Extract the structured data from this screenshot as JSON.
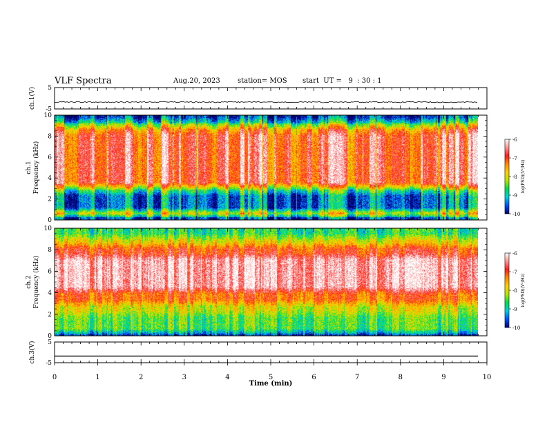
{
  "header": {
    "title": "VLF Spectra",
    "date": "Aug.20, 2023",
    "station": "station= MOS",
    "start": "start  UT =   9  : 30 : 1"
  },
  "chart_data": [
    {
      "type": "line",
      "panel": "ch1-voltage",
      "ylabel": "ch.1(V)",
      "ylim": [
        -5,
        5
      ],
      "yticks": [
        "5",
        "-5"
      ],
      "series": [
        {
          "values": [
            -1.8
          ]
        }
      ]
    },
    {
      "type": "heatmap",
      "panel": "ch1-spectrogram",
      "ylabel": "ch.1\nFrequency (kHz)",
      "ylim": [
        0,
        10
      ],
      "yticks": [
        "0",
        "2",
        "4",
        "6",
        "8",
        "10"
      ],
      "colorbar": {
        "label": "log(PSD)(V²/Hz)",
        "range": [
          -10,
          -6
        ],
        "ticks": [
          "-6",
          "-7",
          "-8",
          "-9",
          "-10"
        ]
      },
      "bands": [
        {
          "from": 0,
          "to": 0.4,
          "level": -9.5
        },
        {
          "from": 0.4,
          "to": 0.8,
          "level": -7.5
        },
        {
          "from": 0.8,
          "to": 2.6,
          "level": -9.4
        },
        {
          "from": 2.6,
          "to": 3.2,
          "level": -8.4
        },
        {
          "from": 3.2,
          "to": 8.4,
          "level": -6.8
        },
        {
          "from": 8.4,
          "to": 9.0,
          "level": -7.4
        },
        {
          "from": 9.0,
          "to": 9.5,
          "level": -8.6
        },
        {
          "from": 9.5,
          "to": 10,
          "level": -9.6
        }
      ]
    },
    {
      "type": "heatmap",
      "panel": "ch2-spectrogram",
      "ylabel": "ch.2\nFrequency (kHz)",
      "ylim": [
        0,
        10
      ],
      "yticks": [
        "0",
        "2",
        "4",
        "6",
        "8",
        "10"
      ],
      "colorbar": {
        "label": "log(PSD)(V²/Hz)",
        "range": [
          -10,
          -6
        ],
        "ticks": [
          "-6",
          "-7",
          "-8",
          "-9",
          "-10"
        ]
      },
      "bands": [
        {
          "from": 0,
          "to": 0.3,
          "level": -9.6
        },
        {
          "from": 0.3,
          "to": 2.0,
          "level": -8.5
        },
        {
          "from": 2.0,
          "to": 3.0,
          "level": -8.0
        },
        {
          "from": 3.0,
          "to": 4.2,
          "level": -7.2
        },
        {
          "from": 4.2,
          "to": 7.4,
          "level": -6.3
        },
        {
          "from": 7.4,
          "to": 8.4,
          "level": -7.0
        },
        {
          "from": 8.4,
          "to": 9.2,
          "level": -7.9
        },
        {
          "from": 9.2,
          "to": 10,
          "level": -8.7
        }
      ]
    },
    {
      "type": "line",
      "panel": "ch3-voltage",
      "ylabel": "ch.3(V)",
      "ylim": [
        -5,
        5
      ],
      "yticks": [
        "5",
        "-5"
      ],
      "xlabel": "Time  (min)",
      "xlim": [
        0,
        10
      ],
      "xticks": [
        "0",
        "1",
        "2",
        "3",
        "4",
        "5",
        "6",
        "7",
        "8",
        "9",
        "10"
      ],
      "series": [
        {
          "values": [
            -1.8
          ]
        }
      ]
    }
  ],
  "colors": {
    "scale": [
      "#00006e",
      "#0050ff",
      "#00d2dc",
      "#00dc50",
      "#b4e600",
      "#ffd200",
      "#ff8c00",
      "#ff1e1e",
      "#ff9696",
      "#ffffff"
    ]
  }
}
